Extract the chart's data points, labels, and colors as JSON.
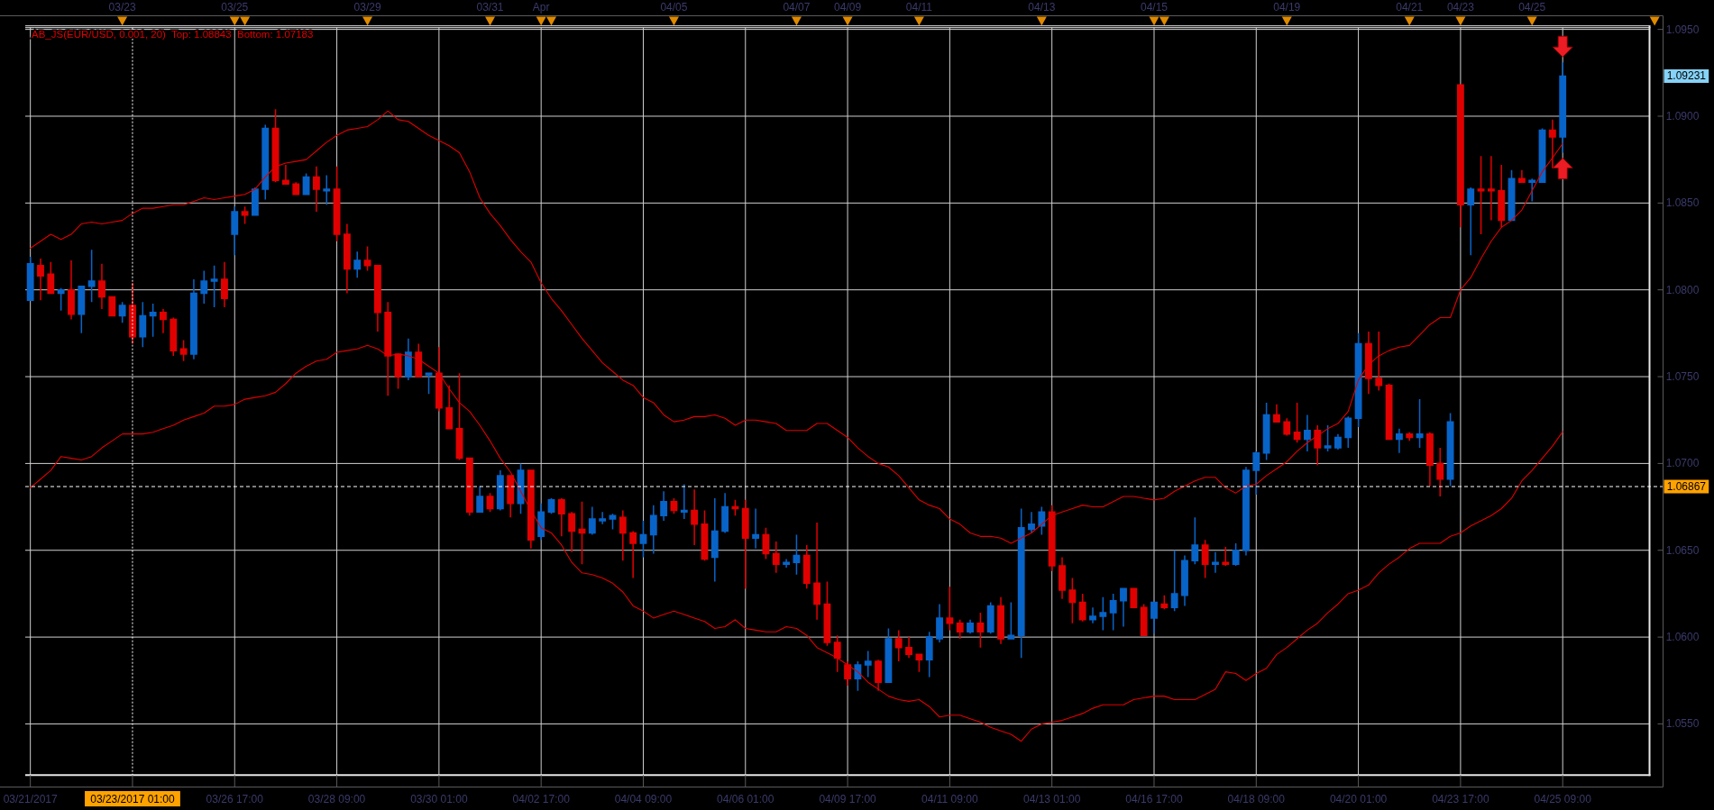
{
  "chart_data": [
    {
      "type": "other",
      "categories": [
        null,
        null,
        null,
        null,
        null,
        null,
        null,
        null,
        null,
        "03/23",
        null,
        null,
        null,
        null,
        null,
        null,
        null,
        null,
        null,
        null,
        "03/25",
        null,
        null,
        null,
        null,
        null,
        null,
        null,
        null,
        null,
        null,
        null,
        null,
        "03/29",
        null,
        null,
        null,
        null,
        null,
        null,
        null,
        null,
        null,
        null,
        null,
        "03/31",
        null,
        null,
        null,
        null,
        "Apr",
        null,
        null,
        null,
        null,
        null,
        null,
        null,
        null,
        null,
        null,
        null,
        null,
        "04/05",
        null,
        null,
        null,
        null,
        null,
        null,
        null,
        null,
        null,
        null,
        null,
        "04/07",
        null,
        null,
        null,
        null,
        "04/09",
        null,
        null,
        null,
        null,
        null,
        null,
        "04/11",
        null,
        null,
        null,
        null,
        null,
        null,
        null,
        null,
        null,
        null,
        null,
        "04/13",
        null,
        null,
        null,
        null,
        null,
        null,
        null,
        null,
        null,
        null,
        "04/15",
        null,
        null,
        null,
        null,
        null,
        null,
        null,
        null,
        null,
        null,
        null,
        null,
        "04/19",
        null,
        null,
        null,
        null,
        null,
        null,
        null,
        null,
        null,
        null,
        null,
        "04/21",
        null,
        null,
        null,
        null,
        "04/23",
        null,
        null,
        null,
        null,
        null,
        null,
        "04/25",
        null,
        null,
        null,
        null,
        null,
        null,
        null,
        null,
        null,
        null,
        null,
        null
      ],
      "colors": [
        null,
        null,
        null,
        null,
        null,
        null,
        null,
        null,
        null,
        "#e08a00",
        null,
        null,
        null,
        null,
        null,
        null,
        null,
        null,
        null,
        null,
        "#e08a00",
        "#e08a00",
        null,
        null,
        null,
        null,
        null,
        null,
        null,
        null,
        null,
        null,
        null,
        "#e08a00",
        null,
        null,
        null,
        null,
        null,
        null,
        null,
        null,
        null,
        null,
        null,
        "#e08a00",
        null,
        null,
        null,
        null,
        "#e08a00",
        "#e08a00",
        null,
        null,
        null,
        null,
        null,
        null,
        null,
        null,
        null,
        null,
        null,
        "#e08a00",
        null,
        null,
        null,
        null,
        null,
        null,
        null,
        null,
        null,
        null,
        null,
        "#e08a00",
        null,
        null,
        null,
        null,
        "#e08a00",
        null,
        null,
        null,
        null,
        null,
        null,
        "#e08a00",
        null,
        null,
        null,
        null,
        null,
        null,
        null,
        null,
        null,
        null,
        null,
        "#e08a00",
        null,
        null,
        null,
        null,
        null,
        null,
        null,
        null,
        null,
        null,
        "#e08a00",
        "#e08a00",
        null,
        null,
        null,
        null,
        null,
        null,
        null,
        null,
        null,
        null,
        null,
        "#e08a00",
        null,
        null,
        null,
        null,
        null,
        null,
        null,
        null,
        null,
        null,
        null,
        "#e08a00",
        null,
        null,
        null,
        null,
        "#e08a00",
        null,
        null,
        null,
        null,
        null,
        null,
        "#e08a00",
        null,
        null,
        null,
        null,
        null,
        null,
        null,
        null,
        null,
        null,
        null,
        "#e08a00"
      ]
    },
    {
      "type": "candlestick",
      "title": "AB_JS(EUR/USD, 0.001, 20)  Top: 1.08843  Bottom: 1.07183",
      "categories": [
        "03/21/2017",
        null,
        null,
        null,
        null,
        null,
        null,
        null,
        null,
        null,
        "03/23/2017 01:00",
        null,
        null,
        null,
        null,
        null,
        null,
        null,
        null,
        null,
        "03/26 17:00",
        null,
        null,
        null,
        null,
        null,
        null,
        null,
        null,
        null,
        "03/28 09:00",
        null,
        null,
        null,
        null,
        null,
        null,
        null,
        null,
        null,
        "03/30 01:00",
        null,
        null,
        null,
        null,
        null,
        null,
        null,
        null,
        null,
        "04/02 17:00",
        null,
        null,
        null,
        null,
        null,
        null,
        null,
        null,
        null,
        "04/04 09:00",
        null,
        null,
        null,
        null,
        null,
        null,
        null,
        null,
        null,
        "04/06 01:00",
        null,
        null,
        null,
        null,
        null,
        null,
        null,
        null,
        null,
        "04/09 17:00",
        null,
        null,
        null,
        null,
        null,
        null,
        null,
        null,
        null,
        "04/11 09:00",
        null,
        null,
        null,
        null,
        null,
        null,
        null,
        null,
        null,
        "04/13 01:00",
        null,
        null,
        null,
        null,
        null,
        null,
        null,
        null,
        null,
        "04/16 17:00",
        null,
        null,
        null,
        null,
        null,
        null,
        null,
        null,
        null,
        "04/18 09:00",
        null,
        null,
        null,
        null,
        null,
        null,
        null,
        null,
        null,
        "04/20 01:00",
        null,
        null,
        null,
        null,
        null,
        null,
        null,
        null,
        null,
        "04/23 17:00",
        null,
        null,
        null,
        null,
        null,
        null,
        null,
        null,
        null,
        "04/25 09:00"
      ],
      "ohlc": [
        [
          1.0794,
          1.0819,
          1.0794,
          1.0815
        ],
        [
          1.0814,
          1.0818,
          1.0794,
          1.0808
        ],
        [
          1.0809,
          1.0816,
          1.0798,
          1.0798
        ],
        [
          1.0798,
          1.0801,
          1.0788,
          1.08
        ],
        [
          1.08,
          1.0817,
          1.0783,
          1.0786
        ],
        [
          1.0786,
          1.0802,
          1.0775,
          1.0802
        ],
        [
          1.0802,
          1.0823,
          1.0793,
          1.0805
        ],
        [
          1.0805,
          1.0815,
          1.0789,
          1.0796
        ],
        [
          1.0796,
          1.0796,
          1.0785,
          1.0785
        ],
        [
          1.0785,
          1.0793,
          1.0781,
          1.0791
        ],
        [
          1.0791,
          1.0804,
          1.0769,
          1.0773
        ],
        [
          1.0773,
          1.0793,
          1.0767,
          1.0785
        ],
        [
          1.0785,
          1.0792,
          1.0773,
          1.0787
        ],
        [
          1.0787,
          1.0789,
          1.0775,
          1.0783
        ],
        [
          1.0783,
          1.0784,
          1.0762,
          1.0765
        ],
        [
          1.0766,
          1.0771,
          1.0759,
          1.0763
        ],
        [
          1.0763,
          1.0806,
          1.076,
          1.0798
        ],
        [
          1.0798,
          1.0811,
          1.0792,
          1.0805
        ],
        [
          1.0805,
          1.0814,
          1.079,
          1.0806
        ],
        [
          1.0806,
          1.0816,
          1.079,
          1.0795
        ],
        [
          1.0832,
          1.0848,
          1.082,
          1.0845
        ],
        [
          1.0845,
          1.0848,
          1.0838,
          1.0843
        ],
        [
          1.0843,
          1.0859,
          1.0843,
          1.0858
        ],
        [
          1.0858,
          1.0895,
          1.0852,
          1.0893
        ],
        [
          1.0893,
          1.0904,
          1.0862,
          1.0863
        ],
        [
          1.0863,
          1.0872,
          1.0861,
          1.0861
        ],
        [
          1.0861,
          1.0862,
          1.0855,
          1.0855
        ],
        [
          1.0855,
          1.0867,
          1.0855,
          1.0865
        ],
        [
          1.0865,
          1.0871,
          1.0845,
          1.0858
        ],
        [
          1.0857,
          1.0866,
          1.0849,
          1.0858
        ],
        [
          1.0858,
          1.0871,
          1.0828,
          1.0832
        ],
        [
          1.0832,
          1.0838,
          1.0798,
          1.0812
        ],
        [
          1.0812,
          1.0822,
          1.0807,
          1.0817
        ],
        [
          1.0817,
          1.0825,
          1.0811,
          1.0814
        ],
        [
          1.0814,
          1.0814,
          1.0776,
          1.0787
        ],
        [
          1.0787,
          1.0793,
          1.0739,
          1.0762
        ],
        [
          1.0763,
          1.0763,
          1.0743,
          1.075
        ],
        [
          1.075,
          1.0772,
          1.0748,
          1.0764
        ],
        [
          1.0764,
          1.0769,
          1.075,
          1.075
        ],
        [
          1.0751,
          1.0752,
          1.074,
          1.0752
        ],
        [
          1.0752,
          1.0767,
          1.073,
          1.0732
        ],
        [
          1.0732,
          1.0745,
          1.072,
          1.072
        ],
        [
          1.072,
          1.0752,
          1.0702,
          1.0703
        ],
        [
          1.0703,
          1.0703,
          1.067,
          1.0672
        ],
        [
          1.0672,
          1.0687,
          1.0672,
          1.0681
        ],
        [
          1.0681,
          1.0683,
          1.0672,
          1.0674
        ],
        [
          1.0674,
          1.0696,
          1.0673,
          1.0693
        ],
        [
          1.0693,
          1.0693,
          1.0669,
          1.0677
        ],
        [
          1.0677,
          1.07,
          1.0671,
          1.0696
        ],
        [
          1.0696,
          1.0696,
          1.0651,
          1.0656
        ],
        [
          1.0658,
          1.0677,
          1.0656,
          1.0672
        ],
        [
          1.0672,
          1.068,
          1.0671,
          1.0679
        ],
        [
          1.0679,
          1.068,
          1.0658,
          1.0671
        ],
        [
          1.0671,
          1.0672,
          1.0649,
          1.0661
        ],
        [
          1.0662,
          1.0678,
          1.0642,
          1.066
        ],
        [
          1.066,
          1.0675,
          1.0659,
          1.0668
        ],
        [
          1.0667,
          1.0672,
          1.0665,
          1.0668
        ],
        [
          1.0668,
          1.0671,
          1.0662,
          1.067
        ],
        [
          1.0669,
          1.0673,
          1.0644,
          1.066
        ],
        [
          1.066,
          1.0661,
          1.0634,
          1.0654
        ],
        [
          1.0654,
          1.0667,
          1.0646,
          1.0659
        ],
        [
          1.0659,
          1.0676,
          1.0648,
          1.067
        ],
        [
          1.067,
          1.0684,
          1.0667,
          1.0678
        ],
        [
          1.0678,
          1.068,
          1.0671,
          1.0673
        ],
        [
          1.0672,
          1.0688,
          1.0668,
          1.0673
        ],
        [
          1.0673,
          1.0685,
          1.0653,
          1.0665
        ],
        [
          1.0665,
          1.0673,
          1.0644,
          1.0645
        ],
        [
          1.0646,
          1.068,
          1.0632,
          1.0661
        ],
        [
          1.0661,
          1.0683,
          1.066,
          1.0675
        ],
        [
          1.0675,
          1.0679,
          1.067,
          1.0674
        ],
        [
          1.0674,
          1.0679,
          1.0628,
          1.0657
        ],
        [
          1.0657,
          1.0674,
          1.0651,
          1.0659
        ],
        [
          1.0659,
          1.0663,
          1.0645,
          1.0648
        ],
        [
          1.0648,
          1.0655,
          1.0637,
          1.0642
        ],
        [
          1.0642,
          1.0645,
          1.064,
          1.0643
        ],
        [
          1.0643,
          1.0659,
          1.0636,
          1.0647
        ],
        [
          1.0647,
          1.0653,
          1.0628,
          1.0631
        ],
        [
          1.0631,
          1.0666,
          1.061,
          1.0619
        ],
        [
          1.0619,
          1.0632,
          1.0595,
          1.0597
        ],
        [
          1.0597,
          1.0601,
          1.058,
          1.0588
        ],
        [
          1.0584,
          1.0586,
          1.0572,
          1.0576
        ],
        [
          1.0576,
          1.0586,
          1.0569,
          1.0584
        ],
        [
          1.0584,
          1.0592,
          1.0577,
          1.0586
        ],
        [
          1.0586,
          1.0587,
          1.0569,
          1.0574
        ],
        [
          1.0574,
          1.0605,
          1.0574,
          1.0599
        ],
        [
          1.0599,
          1.0604,
          1.0586,
          1.0594
        ],
        [
          1.0594,
          1.06,
          1.0588,
          1.059
        ],
        [
          1.059,
          1.059,
          1.058,
          1.0587
        ],
        [
          1.0587,
          1.0603,
          1.0577,
          1.06
        ],
        [
          1.0599,
          1.0619,
          1.0597,
          1.0611
        ],
        [
          1.0611,
          1.0629,
          1.0604,
          1.0608
        ],
        [
          1.0608,
          1.061,
          1.0599,
          1.0603
        ],
        [
          1.0603,
          1.061,
          1.0602,
          1.0608
        ],
        [
          1.0608,
          1.0614,
          1.0594,
          1.0603
        ],
        [
          1.0603,
          1.062,
          1.0602,
          1.0618
        ],
        [
          1.0618,
          1.0623,
          1.0596,
          1.0599
        ],
        [
          1.0599,
          1.062,
          1.0599,
          1.0601
        ],
        [
          1.0601,
          1.0674,
          1.0588,
          1.0663
        ],
        [
          1.0662,
          1.0672,
          1.066,
          1.0665
        ],
        [
          1.0664,
          1.0675,
          1.0659,
          1.0672
        ],
        [
          1.0672,
          1.0676,
          1.0638,
          1.0641
        ],
        [
          1.0641,
          1.0646,
          1.0622,
          1.0627
        ],
        [
          1.0627,
          1.0634,
          1.0608,
          1.062
        ],
        [
          1.062,
          1.0625,
          1.0609,
          1.061
        ],
        [
          1.061,
          1.0617,
          1.0608,
          1.0612
        ],
        [
          1.0612,
          1.0623,
          1.0604,
          1.0614
        ],
        [
          1.0614,
          1.0625,
          1.0604,
          1.0621
        ],
        [
          1.0621,
          1.0628,
          1.0606,
          1.0628
        ],
        [
          1.0628,
          1.0628,
          1.0617,
          1.0617
        ],
        [
          1.0617,
          1.0619,
          1.0601,
          1.0601
        ],
        [
          1.0611,
          1.062,
          1.0602,
          1.062
        ],
        [
          1.0619,
          1.0624,
          1.0616,
          1.0617
        ],
        [
          1.0617,
          1.065,
          1.0615,
          1.0625
        ],
        [
          1.0624,
          1.0647,
          1.0618,
          1.0644
        ],
        [
          1.0644,
          1.0669,
          1.0642,
          1.0653
        ],
        [
          1.0653,
          1.0656,
          1.0634,
          1.0642
        ],
        [
          1.0642,
          1.0649,
          1.0637,
          1.0643
        ],
        [
          1.0643,
          1.0652,
          1.0641,
          1.0642
        ],
        [
          1.0642,
          1.0654,
          1.0641,
          1.065
        ],
        [
          1.065,
          1.0698,
          1.0647,
          1.0696
        ],
        [
          1.0696,
          1.0707,
          1.0682,
          1.0706
        ],
        [
          1.0706,
          1.0735,
          1.0702,
          1.0728
        ],
        [
          1.0728,
          1.0734,
          1.0724,
          1.0724
        ],
        [
          1.0724,
          1.0726,
          1.0716,
          1.0717
        ],
        [
          1.0718,
          1.0735,
          1.0712,
          1.0714
        ],
        [
          1.0714,
          1.0728,
          1.0707,
          1.0719
        ],
        [
          1.0719,
          1.0722,
          1.0699,
          1.0709
        ],
        [
          1.0709,
          1.0722,
          1.0707,
          1.071
        ],
        [
          1.0709,
          1.0717,
          1.0708,
          1.0715
        ],
        [
          1.0715,
          1.0727,
          1.0709,
          1.0726
        ],
        [
          1.0726,
          1.0775,
          1.0721,
          1.0769
        ],
        [
          1.0769,
          1.0776,
          1.074,
          1.0749
        ],
        [
          1.0749,
          1.0776,
          1.0742,
          1.0745
        ],
        [
          1.0745,
          1.0746,
          1.0714,
          1.0714
        ],
        [
          1.0714,
          1.072,
          1.0706,
          1.0717
        ],
        [
          1.0717,
          1.0718,
          1.0713,
          1.0715
        ],
        [
          1.0715,
          1.0737,
          1.0709,
          1.0717
        ],
        [
          1.0717,
          1.0718,
          1.0687,
          1.0699
        ],
        [
          1.07,
          1.0709,
          1.0681,
          1.0691
        ],
        [
          1.0691,
          1.0729,
          1.0687,
          1.0724
        ],
        [
          1.0918,
          1.0918,
          1.0836,
          1.0849
        ],
        [
          1.0849,
          1.0859,
          1.082,
          1.0858
        ],
        [
          1.0858,
          1.0877,
          1.0832,
          1.0857
        ],
        [
          1.0858,
          1.0877,
          1.084,
          1.0857
        ],
        [
          1.0857,
          1.0872,
          1.0836,
          1.084
        ],
        [
          1.084,
          1.0869,
          1.084,
          1.0864
        ],
        [
          1.0864,
          1.0869,
          1.0862,
          1.0862
        ],
        [
          1.0862,
          1.0864,
          1.0851,
          1.0863
        ],
        [
          1.0862,
          1.0893,
          1.0862,
          1.0892
        ],
        [
          1.0892,
          1.0898,
          1.087,
          1.0888
        ],
        [
          1.0888,
          1.0931,
          1.0879,
          1.09231
        ]
      ],
      "colors": [
        "#0864c8",
        "#e00000",
        "#e00000",
        "#0864c8",
        "#e00000",
        "#0864c8",
        "#0864c8",
        "#e00000",
        "#e00000",
        "#0864c8",
        "#e00000",
        "#0864c8",
        "#0864c8",
        "#e00000",
        "#e00000",
        "#e00000",
        "#0864c8",
        "#0864c8",
        "#0864c8",
        "#e00000",
        "#0864c8",
        "#e00000",
        "#0864c8",
        "#0864c8",
        "#e00000",
        "#e00000",
        "#e00000",
        "#0864c8",
        "#e00000",
        "#0864c8",
        "#e00000",
        "#e00000",
        "#0864c8",
        "#e00000",
        "#e00000",
        "#e00000",
        "#e00000",
        "#0864c8",
        "#e00000",
        "#0864c8",
        "#e00000",
        "#e00000",
        "#e00000",
        "#e00000",
        "#0864c8",
        "#e00000",
        "#0864c8",
        "#e00000",
        "#0864c8",
        "#e00000",
        "#0864c8",
        "#0864c8",
        "#e00000",
        "#e00000",
        "#e00000",
        "#0864c8",
        "#0864c8",
        "#0864c8",
        "#e00000",
        "#e00000",
        "#0864c8",
        "#0864c8",
        "#0864c8",
        "#e00000",
        "#0864c8",
        "#e00000",
        "#e00000",
        "#0864c8",
        "#0864c8",
        "#e00000",
        "#e00000",
        "#0864c8",
        "#e00000",
        "#e00000",
        "#0864c8",
        "#0864c8",
        "#e00000",
        "#e00000",
        "#e00000",
        "#e00000",
        "#e00000",
        "#0864c8",
        "#0864c8",
        "#e00000",
        "#0864c8",
        "#e00000",
        "#e00000",
        "#e00000",
        "#0864c8",
        "#0864c8",
        "#e00000",
        "#e00000",
        "#0864c8",
        "#e00000",
        "#0864c8",
        "#e00000",
        "#0864c8",
        "#0864c8",
        "#0864c8",
        "#0864c8",
        "#e00000",
        "#e00000",
        "#e00000",
        "#e00000",
        "#0864c8",
        "#0864c8",
        "#0864c8",
        "#0864c8",
        "#e00000",
        "#e00000",
        "#0864c8",
        "#e00000",
        "#0864c8",
        "#0864c8",
        "#0864c8",
        "#e00000",
        "#0864c8",
        "#e00000",
        "#0864c8",
        "#0864c8",
        "#0864c8",
        "#0864c8",
        "#e00000",
        "#e00000",
        "#e00000",
        "#0864c8",
        "#e00000",
        "#0864c8",
        "#0864c8",
        "#0864c8",
        "#0864c8",
        "#e00000",
        "#e00000",
        "#e00000",
        "#0864c8",
        "#e00000",
        "#0864c8",
        "#e00000",
        "#e00000",
        "#0864c8",
        "#e00000",
        "#0864c8",
        "#e00000",
        "#e00000",
        "#e00000",
        "#0864c8",
        "#e00000",
        "#0864c8",
        "#0864c8",
        "#e00000",
        "#0864c8"
      ],
      "series": [
        {
          "type": "line",
          "color": "#e00000",
          "values": [
            1.0824,
            1.0828,
            1.0832,
            1.0829,
            1.0832,
            1.0838,
            1.0839,
            1.0838,
            1.0839,
            1.084,
            1.0844,
            1.0847,
            1.0847,
            1.0848,
            1.0849,
            1.0849,
            1.0851,
            1.0853,
            1.0852,
            1.0853,
            1.0854,
            1.0855,
            1.0858,
            1.0865,
            1.0871,
            1.0873,
            1.0874,
            1.0875,
            1.088,
            1.0885,
            1.0889,
            1.0892,
            1.0893,
            1.0894,
            1.0898,
            1.0903,
            1.0898,
            1.0897,
            1.0893,
            1.0889,
            1.0886,
            1.0883,
            1.0879,
            1.0868,
            1.0853,
            1.0844,
            1.0837,
            1.0829,
            1.0822,
            1.0816,
            1.0804,
            1.0795,
            1.0788,
            1.078,
            1.0772,
            1.0765,
            1.0758,
            1.0753,
            1.0748,
            1.0745,
            1.0738,
            1.0735,
            1.0728,
            1.0724,
            1.0725,
            1.0727,
            1.0727,
            1.0728,
            1.0726,
            1.0722,
            1.0725,
            1.0725,
            1.0724,
            1.0723,
            1.0719,
            1.0719,
            1.0719,
            1.0723,
            1.0723,
            1.0719,
            1.0715,
            1.0709,
            1.0704,
            1.07,
            1.0698,
            1.0693,
            1.0686,
            1.0679,
            1.0676,
            1.0674,
            1.0668,
            1.0665,
            1.066,
            1.0658,
            1.0658,
            1.0657,
            1.0654,
            1.0657,
            1.066,
            1.0665,
            1.067,
            1.0672,
            1.0674,
            1.0676,
            1.0675,
            1.0675,
            1.0678,
            1.0681,
            1.0681,
            1.068,
            1.0679,
            1.068,
            1.0684,
            1.0687,
            1.069,
            1.0692,
            1.0692,
            1.0686,
            1.0683,
            1.0687,
            1.0688,
            1.0693,
            1.0697,
            1.0701,
            1.0707,
            1.0712,
            1.0716,
            1.072,
            1.0723,
            1.073,
            1.0748,
            1.0757,
            1.0762,
            1.0765,
            1.0767,
            1.0768,
            1.0774,
            1.078,
            1.0784,
            1.0784,
            1.08,
            1.0807,
            1.0818,
            1.0828,
            1.0836,
            1.084,
            1.0846,
            1.0857,
            1.0868,
            1.0876,
            1.08843
          ]
        },
        {
          "type": "line",
          "color": "#e00000",
          "values": [
            1.0686,
            1.0691,
            1.0696,
            1.0704,
            1.0703,
            1.0702,
            1.0704,
            1.0709,
            1.0713,
            1.0717,
            1.0717,
            1.0717,
            1.0718,
            1.072,
            1.0722,
            1.0725,
            1.0727,
            1.0729,
            1.0733,
            1.0733,
            1.0734,
            1.0737,
            1.0738,
            1.0739,
            1.0741,
            1.0746,
            1.0752,
            1.0756,
            1.0759,
            1.076,
            1.0764,
            1.0765,
            1.0766,
            1.0768,
            1.0766,
            1.0762,
            1.0763,
            1.0762,
            1.076,
            1.0756,
            1.0752,
            1.0743,
            1.0735,
            1.073,
            1.0722,
            1.0713,
            1.0703,
            1.0695,
            1.0684,
            1.0673,
            1.0663,
            1.066,
            1.0653,
            1.0643,
            1.0637,
            1.0636,
            1.0634,
            1.0631,
            1.0626,
            1.0618,
            1.0615,
            1.0611,
            1.0613,
            1.0615,
            1.0613,
            1.0611,
            1.0609,
            1.0605,
            1.0606,
            1.061,
            1.0605,
            1.0604,
            1.0603,
            1.0603,
            1.0606,
            1.0605,
            1.0601,
            1.0594,
            1.0591,
            1.0588,
            1.0584,
            1.058,
            1.0574,
            1.057,
            1.0566,
            1.0564,
            1.0563,
            1.0564,
            1.056,
            1.0554,
            1.0555,
            1.0555,
            1.0553,
            1.0551,
            1.0548,
            1.0546,
            1.0544,
            1.054,
            1.0547,
            1.055,
            1.0551,
            1.0552,
            1.0554,
            1.0556,
            1.0559,
            1.0561,
            1.0561,
            1.0561,
            1.0564,
            1.0565,
            1.0566,
            1.0566,
            1.0564,
            1.0564,
            1.0564,
            1.0567,
            1.057,
            1.058,
            1.0579,
            1.0575,
            1.0579,
            1.0582,
            1.059,
            1.0594,
            1.0599,
            1.0604,
            1.0608,
            1.0614,
            1.0619,
            1.0625,
            1.0627,
            1.063,
            1.0637,
            1.0642,
            1.0646,
            1.0651,
            1.0654,
            1.0654,
            1.0654,
            1.0658,
            1.066,
            1.0664,
            1.0667,
            1.067,
            1.0674,
            1.068,
            1.069,
            1.0696,
            1.0703,
            1.071,
            1.07183
          ]
        }
      ],
      "ylim": [
        1.05205,
        1.0951
      ],
      "yticks": [
        {
          "value": 1.055,
          "label": "1.0550"
        },
        {
          "value": 1.06,
          "label": "1.0600"
        },
        {
          "value": 1.065,
          "label": "1.0650"
        },
        {
          "value": 1.07,
          "label": "1.0700"
        },
        {
          "value": 1.075,
          "label": "1.0750"
        },
        {
          "value": 1.08,
          "label": "1.0800"
        },
        {
          "value": 1.085,
          "label": "1.0850"
        },
        {
          "value": 1.09,
          "label": "1.0900"
        },
        {
          "value": 1.095,
          "label": "1.0950"
        }
      ],
      "grid": true,
      "ref_lines": [
        {
          "axis": "y",
          "value": 1.06867,
          "label": "1.06867",
          "color": "#ffffff",
          "line_style": "dashed"
        },
        {
          "axis": "x",
          "value": "03/23/2017 01:00",
          "color": "#ffffff",
          "line_style": "dotted"
        }
      ],
      "annotations": [
        "1.09231"
      ]
    }
  ]
}
